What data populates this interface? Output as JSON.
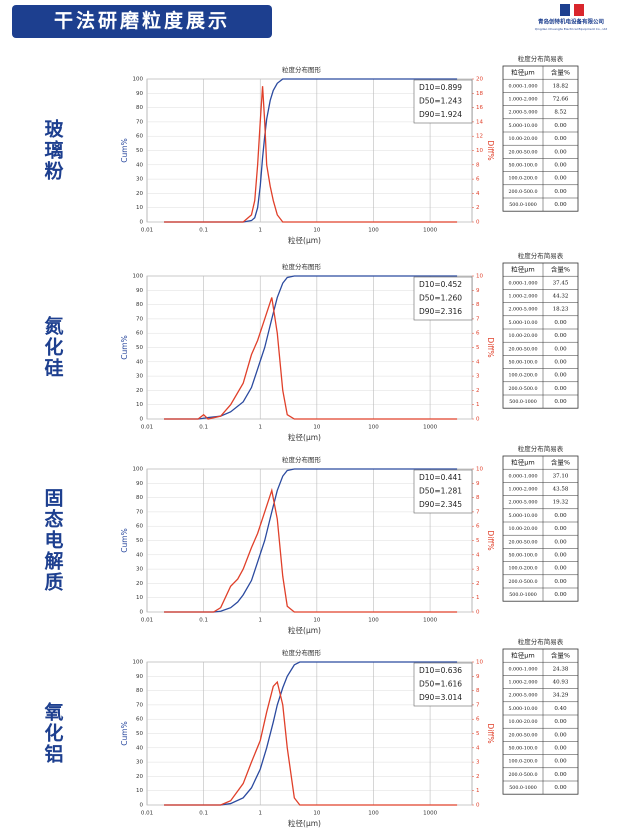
{
  "header": {
    "title": "干法研磨粒度展示",
    "company": "青岛创特机电设备有限公司",
    "company_en": "Qingdao Chuangte Electrical Equipment Co., Ltd"
  },
  "panels": [
    {
      "material": "玻璃粉",
      "table": {
        "title": "粒度分布简易表",
        "headers": [
          "粒径μm",
          "含量%"
        ],
        "rows": [
          [
            "0.000-1.000",
            "18.82"
          ],
          [
            "1.000-2.000",
            "72.66"
          ],
          [
            "2.000-5.000",
            "8.52"
          ],
          [
            "5.000-10.00",
            "0.00"
          ],
          [
            "10.00-20.00",
            "0.00"
          ],
          [
            "20.00-50.00",
            "0.00"
          ],
          [
            "50.00-100.0",
            "0.00"
          ],
          [
            "100.0-200.0",
            "0.00"
          ],
          [
            "200.0-500.0",
            "0.00"
          ],
          [
            "500.0-1000",
            "0.00"
          ]
        ]
      }
    },
    {
      "material": "氮化硅",
      "table": {
        "title": "粒度分布简易表",
        "headers": [
          "粒径μm",
          "含量%"
        ],
        "rows": [
          [
            "0.000-1.000",
            "37.45"
          ],
          [
            "1.000-2.000",
            "44.32"
          ],
          [
            "2.000-5.000",
            "18.23"
          ],
          [
            "5.000-10.00",
            "0.00"
          ],
          [
            "10.00-20.00",
            "0.00"
          ],
          [
            "20.00-50.00",
            "0.00"
          ],
          [
            "50.00-100.0",
            "0.00"
          ],
          [
            "100.0-200.0",
            "0.00"
          ],
          [
            "200.0-500.0",
            "0.00"
          ],
          [
            "500.0-1000",
            "0.00"
          ]
        ]
      }
    },
    {
      "material": "固态电解质",
      "table": {
        "title": "粒度分布简易表",
        "headers": [
          "粒径μm",
          "含量%"
        ],
        "rows": [
          [
            "0.000-1.000",
            "37.10"
          ],
          [
            "1.000-2.000",
            "43.58"
          ],
          [
            "2.000-5.000",
            "19.32"
          ],
          [
            "5.000-10.00",
            "0.00"
          ],
          [
            "10.00-20.00",
            "0.00"
          ],
          [
            "20.00-50.00",
            "0.00"
          ],
          [
            "50.00-100.0",
            "0.00"
          ],
          [
            "100.0-200.0",
            "0.00"
          ],
          [
            "200.0-500.0",
            "0.00"
          ],
          [
            "500.0-1000",
            "0.00"
          ]
        ]
      }
    },
    {
      "material": "氧化铝",
      "table": {
        "title": "粒度分布简易表",
        "headers": [
          "粒径μm",
          "含量%"
        ],
        "rows": [
          [
            "0.000-1.000",
            "24.38"
          ],
          [
            "1.000-2.000",
            "40.93"
          ],
          [
            "2.000-5.000",
            "34.29"
          ],
          [
            "5.000-10.00",
            "0.40"
          ],
          [
            "10.00-20.00",
            "0.00"
          ],
          [
            "20.00-50.00",
            "0.00"
          ],
          [
            "50.00-100.0",
            "0.00"
          ],
          [
            "100.0-200.0",
            "0.00"
          ],
          [
            "200.0-500.0",
            "0.00"
          ],
          [
            "500.0-1000",
            "0.00"
          ]
        ]
      }
    }
  ],
  "chart_data": [
    {
      "type": "line",
      "title": "粒度分布图形",
      "x_label": "粒径(μm)",
      "y_label": "Cum%",
      "y2_label": "Diff%",
      "x_log": true,
      "grid": true,
      "annotations": [
        "D10=0.899",
        "D50=1.243",
        "D90=1.924"
      ],
      "xlim": [
        0.01,
        5500
      ],
      "xticks": [
        0.01,
        0.1,
        1,
        10,
        100,
        1000
      ],
      "ylim": [
        0,
        100
      ],
      "yticks": [
        0,
        10,
        20,
        30,
        40,
        50,
        60,
        70,
        80,
        90,
        100
      ],
      "y2lim": [
        0,
        20
      ],
      "y2ticks": [
        0,
        2,
        4,
        6,
        8,
        10,
        12,
        14,
        16,
        18,
        20
      ],
      "x": [
        0.02,
        0.5,
        0.7,
        0.8,
        0.9,
        1.0,
        1.1,
        1.2,
        1.3,
        1.5,
        1.7,
        2.0,
        2.5,
        3,
        3000
      ],
      "series": [
        {
          "name": "Cum%",
          "color": "#2b4a9f",
          "values": [
            0,
            0,
            1,
            3,
            10,
            25,
            45,
            60,
            72,
            85,
            92,
            97,
            100,
            100,
            100
          ]
        },
        {
          "name": "Diff%",
          "color": "#e0402a",
          "axis": "y2",
          "values": [
            0,
            0,
            1,
            3,
            8,
            14,
            19,
            14,
            8,
            5,
            3,
            1,
            0,
            0,
            0
          ]
        }
      ]
    },
    {
      "type": "line",
      "title": "粒度分布图形",
      "x_label": "粒径(μm)",
      "y_label": "Cum%",
      "y2_label": "Diff%",
      "x_log": true,
      "grid": true,
      "annotations": [
        "D10=0.452",
        "D50=1.260",
        "D90=2.316"
      ],
      "xlim": [
        0.01,
        5500
      ],
      "xticks": [
        0.01,
        0.1,
        1,
        10,
        100,
        1000
      ],
      "ylim": [
        0,
        100
      ],
      "yticks": [
        0,
        10,
        20,
        30,
        40,
        50,
        60,
        70,
        80,
        90,
        100
      ],
      "y2lim": [
        0,
        10
      ],
      "y2ticks": [
        0,
        1,
        2,
        3,
        4,
        5,
        6,
        7,
        8,
        9,
        10
      ],
      "x": [
        0.02,
        0.08,
        0.1,
        0.12,
        0.2,
        0.3,
        0.5,
        0.7,
        0.9,
        1.2,
        1.6,
        2.0,
        2.5,
        3.0,
        4.0,
        3000
      ],
      "series": [
        {
          "name": "Cum%",
          "color": "#2b4a9f",
          "values": [
            0,
            0,
            0.5,
            1,
            2,
            5,
            12,
            22,
            35,
            50,
            70,
            85,
            95,
            99,
            100,
            100
          ]
        },
        {
          "name": "Diff%",
          "color": "#e0402a",
          "axis": "y2",
          "values": [
            0,
            0,
            0.3,
            0,
            0.2,
            1,
            2.5,
            4.5,
            5.5,
            7,
            8.5,
            6,
            2,
            0.3,
            0,
            0
          ]
        }
      ]
    },
    {
      "type": "line",
      "title": "粒度分布图形",
      "x_label": "粒径(μm)",
      "y_label": "Cum%",
      "y2_label": "Diff%",
      "x_log": true,
      "grid": true,
      "annotations": [
        "D10=0.441",
        "D50=1.281",
        "D90=2.345"
      ],
      "xlim": [
        0.01,
        5500
      ],
      "xticks": [
        0.01,
        0.1,
        1,
        10,
        100,
        1000
      ],
      "ylim": [
        0,
        100
      ],
      "yticks": [
        0,
        10,
        20,
        30,
        40,
        50,
        60,
        70,
        80,
        90,
        100
      ],
      "y2lim": [
        0,
        10
      ],
      "y2ticks": [
        0,
        1,
        2,
        3,
        4,
        5,
        6,
        7,
        8,
        9,
        10
      ],
      "x": [
        0.02,
        0.15,
        0.2,
        0.3,
        0.4,
        0.5,
        0.7,
        0.9,
        1.2,
        1.6,
        2.0,
        2.5,
        3.0,
        4.0,
        3000
      ],
      "series": [
        {
          "name": "Cum%",
          "color": "#2b4a9f",
          "values": [
            0,
            0,
            0.5,
            3,
            7,
            12,
            22,
            35,
            50,
            70,
            85,
            95,
            99,
            100,
            100
          ]
        },
        {
          "name": "Diff%",
          "color": "#e0402a",
          "axis": "y2",
          "values": [
            0,
            0,
            0.3,
            1.8,
            2.3,
            3,
            4.5,
            5.5,
            7,
            8.5,
            6.5,
            2.5,
            0.4,
            0,
            0
          ]
        }
      ]
    },
    {
      "type": "line",
      "title": "粒度分布图形",
      "x_label": "粒径(μm)",
      "y_label": "Cum%",
      "y2_label": "Diff%",
      "x_log": true,
      "grid": true,
      "annotations": [
        "D10=0.636",
        "D50=1.616",
        "D90=3.014"
      ],
      "xlim": [
        0.01,
        5500
      ],
      "xticks": [
        0.01,
        0.1,
        1,
        10,
        100,
        1000
      ],
      "ylim": [
        0,
        100
      ],
      "yticks": [
        0,
        10,
        20,
        30,
        40,
        50,
        60,
        70,
        80,
        90,
        100
      ],
      "y2lim": [
        0,
        10
      ],
      "y2ticks": [
        0,
        1,
        2,
        3,
        4,
        5,
        6,
        7,
        8,
        9,
        10
      ],
      "x": [
        0.02,
        0.2,
        0.3,
        0.5,
        0.7,
        1.0,
        1.3,
        1.7,
        2.0,
        2.5,
        3.0,
        4.0,
        5.0,
        3000
      ],
      "series": [
        {
          "name": "Cum%",
          "color": "#2b4a9f",
          "values": [
            0,
            0,
            1,
            5,
            12,
            25,
            40,
            58,
            70,
            82,
            90,
            98,
            100,
            100
          ]
        },
        {
          "name": "Diff%",
          "color": "#e0402a",
          "axis": "y2",
          "values": [
            0,
            0,
            0.3,
            1.5,
            3,
            4.5,
            6.5,
            8.3,
            8.6,
            7,
            4,
            0.5,
            0,
            0
          ]
        }
      ]
    }
  ]
}
